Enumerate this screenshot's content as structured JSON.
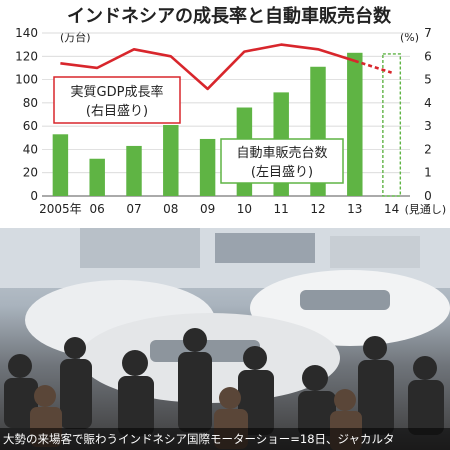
{
  "chart_data": {
    "type": "bar",
    "title": "インドネシアの成長率と自動車販売台数",
    "categories": [
      "2005年",
      "06",
      "07",
      "08",
      "09",
      "10",
      "11",
      "12",
      "13",
      "14"
    ],
    "category_suffix_last": "(見通し)",
    "series": [
      {
        "name": "自動車販売台数",
        "type": "bar",
        "axis": "left",
        "unit": "万台",
        "values": [
          53,
          32,
          43,
          61,
          49,
          76,
          89,
          111,
          123,
          null
        ]
      },
      {
        "name": "実質GDP成長率",
        "type": "line",
        "axis": "right",
        "unit": "%",
        "values": [
          5.7,
          5.5,
          6.3,
          6.0,
          4.6,
          6.2,
          6.5,
          6.3,
          5.8,
          5.3
        ],
        "forecast_from_index": 8
      }
    ],
    "forecast_index": 9,
    "left_axis": {
      "label": "(万台)",
      "ylim": [
        0,
        140
      ],
      "ticks": [
        0,
        20,
        40,
        60,
        80,
        100,
        120,
        140
      ]
    },
    "right_axis": {
      "label": "(%)",
      "ylim": [
        0,
        7
      ],
      "ticks": [
        0,
        1,
        2,
        3,
        4,
        5,
        6,
        7
      ]
    },
    "annotations": {
      "line_label_1": "実質GDP成長率",
      "line_label_2": "(右目盛り)",
      "bar_label_1": "自動車販売台数",
      "bar_label_2": "(左目盛り)"
    },
    "colors": {
      "bar": "#5fb444",
      "bar_label_border": "#5fb444",
      "line": "#d8262c",
      "line_label_border": "#d8262c",
      "title": "#222222"
    }
  },
  "photo": {
    "caption": "大勢の来場客で賑わうインドネシア国際モーターショー=18日、ジャカルタ"
  }
}
